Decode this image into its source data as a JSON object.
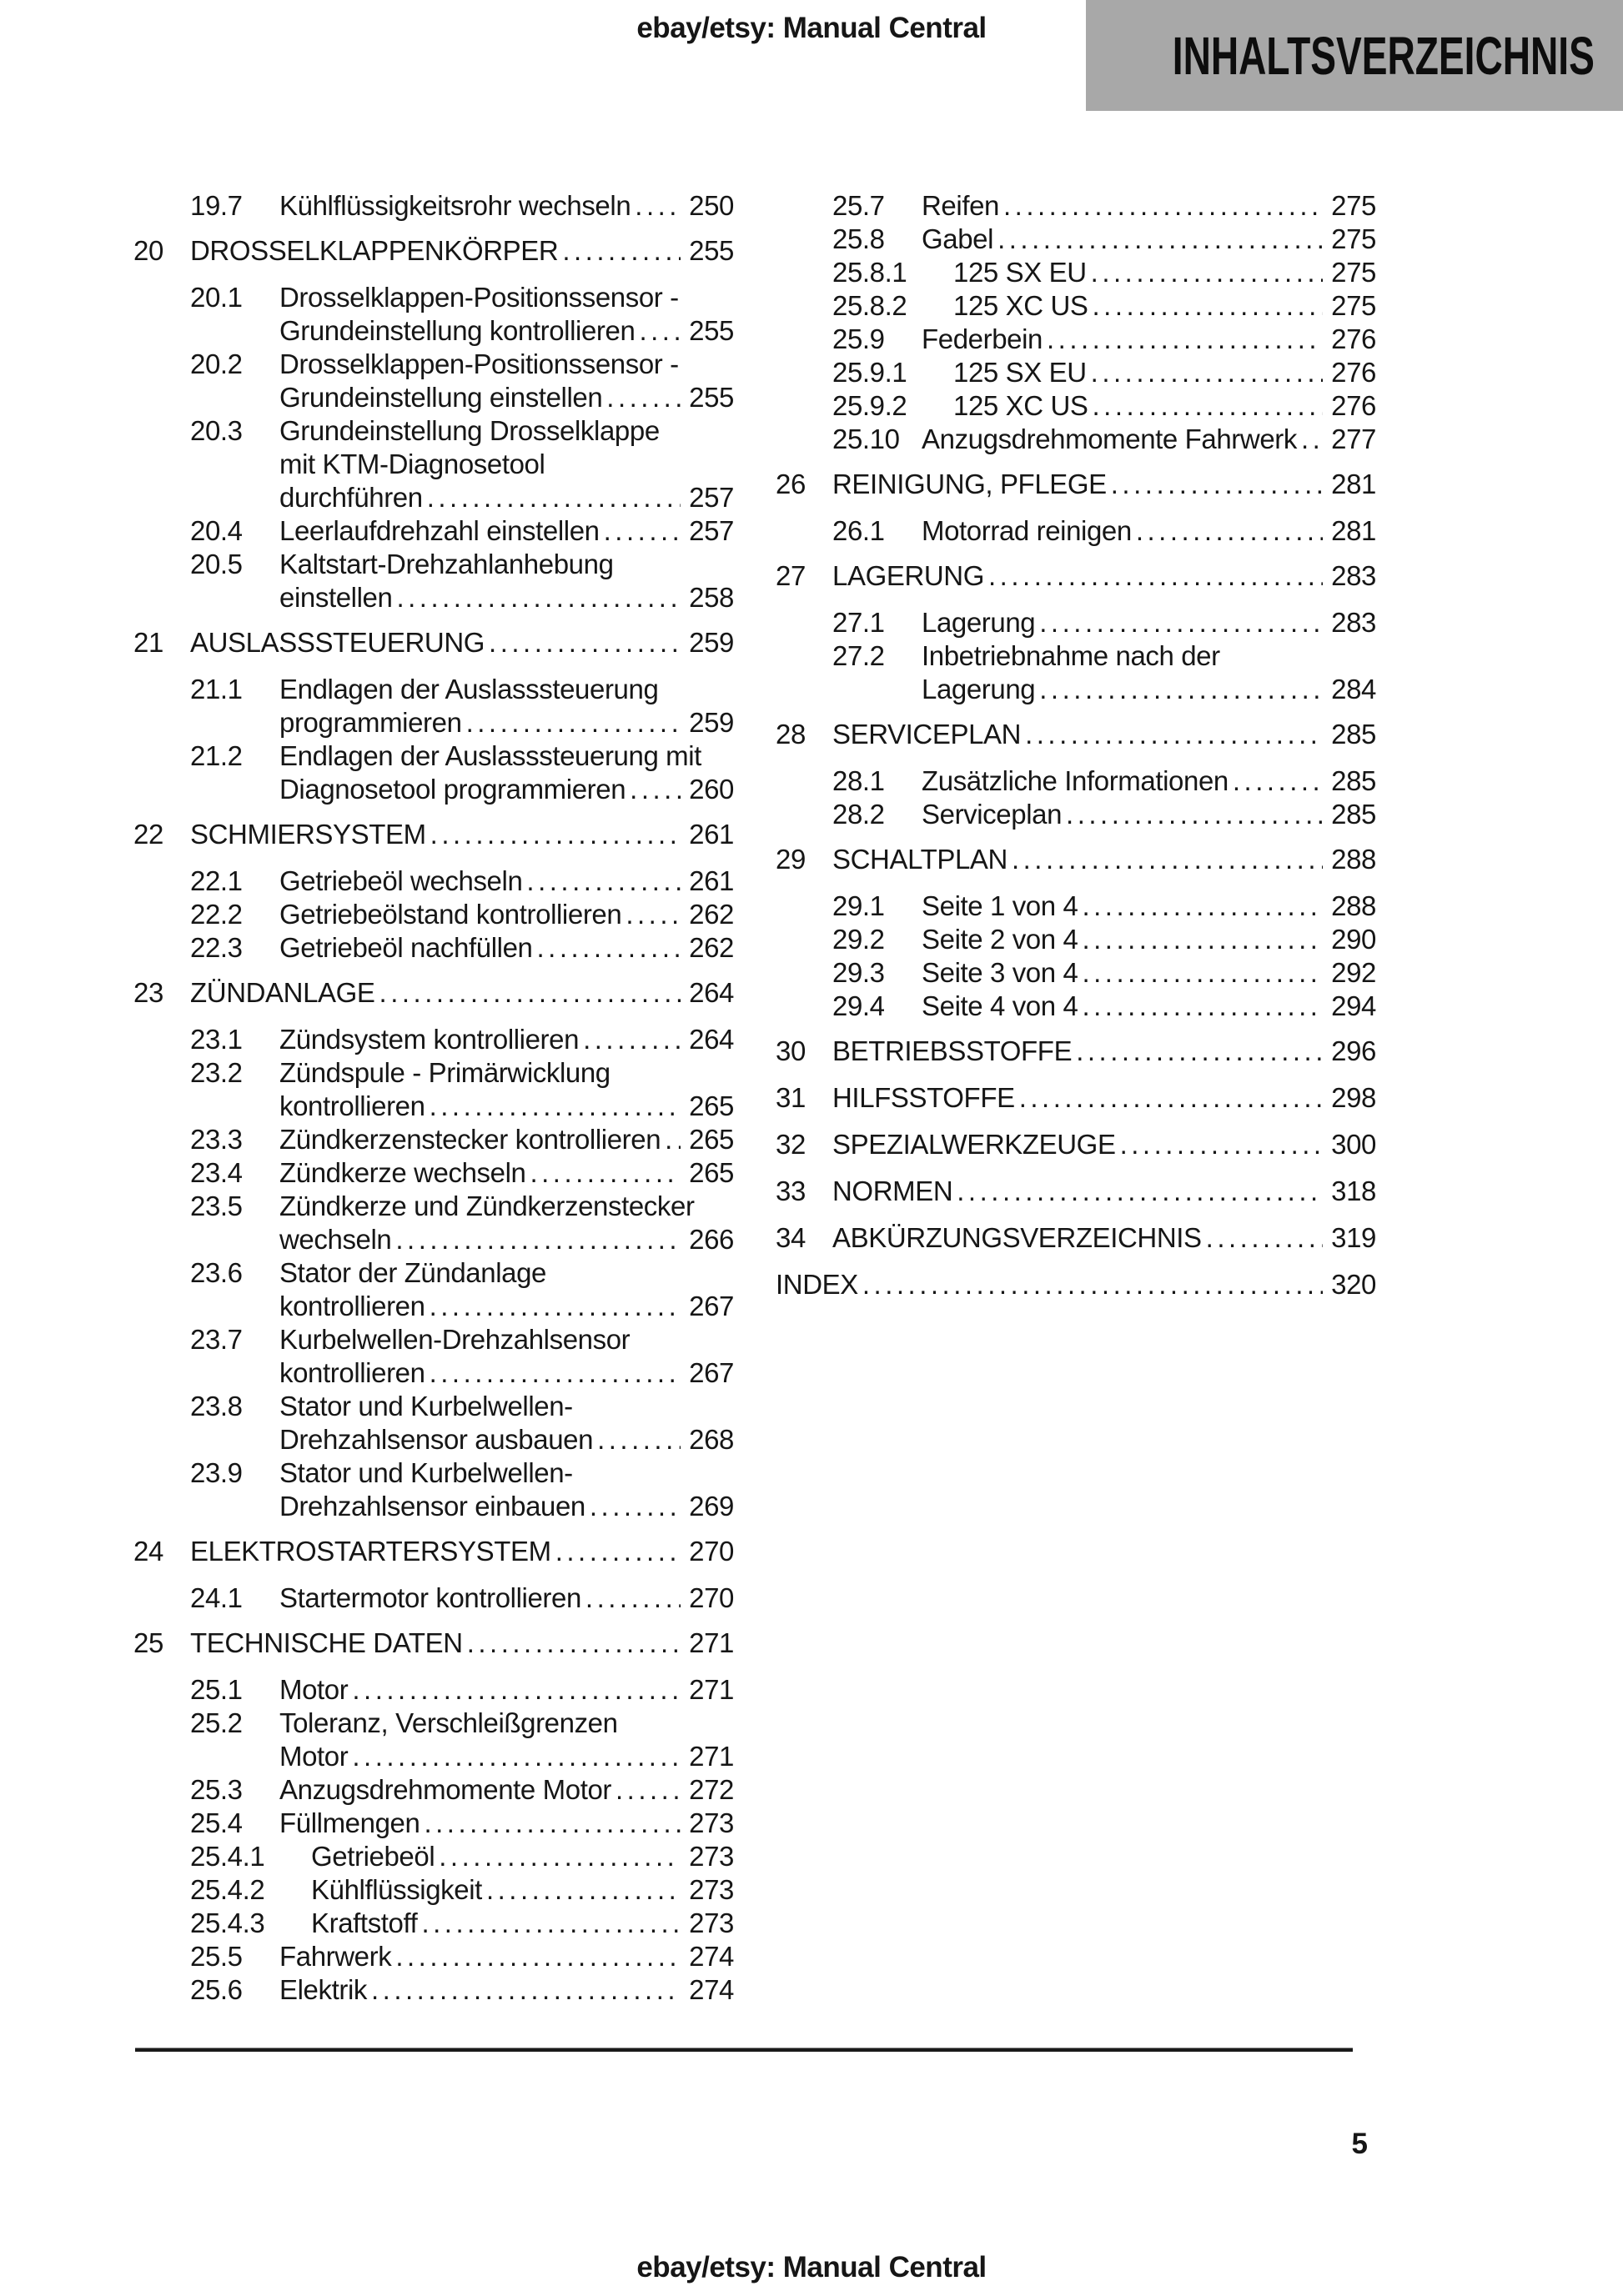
{
  "header": {
    "site_label": "ebay/etsy: Manual Central",
    "page_heading": "INHALTSVERZEICHNIS"
  },
  "footer": {
    "page_number": "5",
    "site_label": "ebay/etsy: Manual Central"
  },
  "colors": {
    "header_box_bg": "#a8a8a8",
    "text": "#161616"
  },
  "toc": {
    "left": [
      {
        "num": "19.7",
        "level": "section",
        "lines": [
          "Kühlflüssigkeitsrohr wechseln"
        ],
        "page": "250"
      },
      {
        "num": "20",
        "level": "chapter",
        "lines": [
          "DROSSELKLAPPENKÖRPER"
        ],
        "page": "255"
      },
      {
        "num": "20.1",
        "level": "section",
        "lines": [
          "Drosselklappen-Positionssensor -",
          "Grundeinstellung kontrollieren"
        ],
        "page": "255"
      },
      {
        "num": "20.2",
        "level": "section",
        "lines": [
          "Drosselklappen-Positionssensor -",
          "Grundeinstellung einstellen"
        ],
        "page": "255"
      },
      {
        "num": "20.3",
        "level": "section",
        "lines": [
          "Grundeinstellung Drosselklappe",
          "mit KTM-Diagnosetool",
          "durchführen"
        ],
        "page": "257"
      },
      {
        "num": "20.4",
        "level": "section",
        "lines": [
          "Leerlaufdrehzahl einstellen"
        ],
        "page": "257"
      },
      {
        "num": "20.5",
        "level": "section",
        "lines": [
          "Kaltstart-Drehzahlanhebung",
          "einstellen"
        ],
        "page": "258"
      },
      {
        "num": "21",
        "level": "chapter",
        "lines": [
          "AUSLASSSTEUERUNG"
        ],
        "page": "259"
      },
      {
        "num": "21.1",
        "level": "section",
        "lines": [
          "Endlagen der Auslasssteuerung",
          "programmieren"
        ],
        "page": "259"
      },
      {
        "num": "21.2",
        "level": "section",
        "lines": [
          "Endlagen der Auslasssteuerung mit",
          "Diagnosetool programmieren"
        ],
        "page": "260"
      },
      {
        "num": "22",
        "level": "chapter",
        "lines": [
          "SCHMIERSYSTEM"
        ],
        "page": "261"
      },
      {
        "num": "22.1",
        "level": "section",
        "lines": [
          "Getriebeöl wechseln"
        ],
        "page": "261"
      },
      {
        "num": "22.2",
        "level": "section",
        "lines": [
          "Getriebeölstand kontrollieren"
        ],
        "page": "262"
      },
      {
        "num": "22.3",
        "level": "section",
        "lines": [
          "Getriebeöl nachfüllen"
        ],
        "page": "262"
      },
      {
        "num": "23",
        "level": "chapter",
        "lines": [
          "ZÜNDANLAGE"
        ],
        "page": "264"
      },
      {
        "num": "23.1",
        "level": "section",
        "lines": [
          "Zündsystem kontrollieren"
        ],
        "page": "264"
      },
      {
        "num": "23.2",
        "level": "section",
        "lines": [
          "Zündspule - Primärwicklung",
          "kontrollieren"
        ],
        "page": "265"
      },
      {
        "num": "23.3",
        "level": "section",
        "lines": [
          "Zündkerzenstecker kontrollieren"
        ],
        "page": "265"
      },
      {
        "num": "23.4",
        "level": "section",
        "lines": [
          "Zündkerze wechseln"
        ],
        "page": "265"
      },
      {
        "num": "23.5",
        "level": "section",
        "lines": [
          "Zündkerze und Zündkerzenstecker",
          "wechseln"
        ],
        "page": "266"
      },
      {
        "num": "23.6",
        "level": "section",
        "lines": [
          "Stator der Zündanlage",
          "kontrollieren"
        ],
        "page": "267"
      },
      {
        "num": "23.7",
        "level": "section",
        "lines": [
          "Kurbelwellen-Drehzahlsensor",
          "kontrollieren"
        ],
        "page": "267"
      },
      {
        "num": "23.8",
        "level": "section",
        "lines": [
          "Stator und Kurbelwellen-",
          "Drehzahlsensor ausbauen"
        ],
        "page": "268"
      },
      {
        "num": "23.9",
        "level": "section",
        "lines": [
          "Stator und Kurbelwellen-",
          "Drehzahlsensor einbauen"
        ],
        "page": "269"
      },
      {
        "num": "24",
        "level": "chapter",
        "lines": [
          "ELEKTROSTARTERSYSTEM"
        ],
        "page": "270"
      },
      {
        "num": "24.1",
        "level": "section",
        "lines": [
          "Startermotor kontrollieren"
        ],
        "page": "270"
      },
      {
        "num": "25",
        "level": "chapter",
        "lines": [
          "TECHNISCHE DATEN"
        ],
        "page": "271"
      },
      {
        "num": "25.1",
        "level": "section",
        "lines": [
          "Motor"
        ],
        "page": "271"
      },
      {
        "num": "25.2",
        "level": "section",
        "lines": [
          "Toleranz, Verschleißgrenzen",
          "Motor"
        ],
        "page": "271"
      },
      {
        "num": "25.3",
        "level": "section",
        "lines": [
          "Anzugsdrehmomente Motor"
        ],
        "page": "272"
      },
      {
        "num": "25.4",
        "level": "section",
        "lines": [
          "Füllmengen"
        ],
        "page": "273"
      },
      {
        "num": "25.4.1",
        "level": "subsection",
        "lines": [
          "Getriebeöl"
        ],
        "page": "273"
      },
      {
        "num": "25.4.2",
        "level": "subsection",
        "lines": [
          "Kühlflüssigkeit"
        ],
        "page": "273"
      },
      {
        "num": "25.4.3",
        "level": "subsection",
        "lines": [
          "Kraftstoff"
        ],
        "page": "273"
      },
      {
        "num": "25.5",
        "level": "section",
        "lines": [
          "Fahrwerk"
        ],
        "page": "274"
      },
      {
        "num": "25.6",
        "level": "section",
        "lines": [
          "Elektrik"
        ],
        "page": "274"
      }
    ],
    "right": [
      {
        "num": "25.7",
        "level": "section",
        "lines": [
          "Reifen"
        ],
        "page": "275"
      },
      {
        "num": "25.8",
        "level": "section",
        "lines": [
          "Gabel"
        ],
        "page": "275"
      },
      {
        "num": "25.8.1",
        "level": "subsection",
        "lines": [
          "125 SX EU"
        ],
        "page": "275"
      },
      {
        "num": "25.8.2",
        "level": "subsection",
        "lines": [
          "125 XC US"
        ],
        "page": "275"
      },
      {
        "num": "25.9",
        "level": "section",
        "lines": [
          "Federbein"
        ],
        "page": "276"
      },
      {
        "num": "25.9.1",
        "level": "subsection",
        "lines": [
          "125 SX EU"
        ],
        "page": "276"
      },
      {
        "num": "25.9.2",
        "level": "subsection",
        "lines": [
          "125 XC US"
        ],
        "page": "276"
      },
      {
        "num": "25.10",
        "level": "section",
        "lines": [
          "Anzugsdrehmomente Fahrwerk"
        ],
        "page": "277"
      },
      {
        "num": "26",
        "level": "chapter",
        "lines": [
          "REINIGUNG, PFLEGE"
        ],
        "page": "281"
      },
      {
        "num": "26.1",
        "level": "section",
        "lines": [
          "Motorrad reinigen"
        ],
        "page": "281"
      },
      {
        "num": "27",
        "level": "chapter",
        "lines": [
          "LAGERUNG"
        ],
        "page": "283"
      },
      {
        "num": "27.1",
        "level": "section",
        "lines": [
          "Lagerung"
        ],
        "page": "283"
      },
      {
        "num": "27.2",
        "level": "section",
        "lines": [
          "Inbetriebnahme nach der",
          "Lagerung"
        ],
        "page": "284"
      },
      {
        "num": "28",
        "level": "chapter",
        "lines": [
          "SERVICEPLAN"
        ],
        "page": "285"
      },
      {
        "num": "28.1",
        "level": "section",
        "lines": [
          "Zusätzliche Informationen"
        ],
        "page": "285"
      },
      {
        "num": "28.2",
        "level": "section",
        "lines": [
          "Serviceplan"
        ],
        "page": "285"
      },
      {
        "num": "29",
        "level": "chapter",
        "lines": [
          "SCHALTPLAN"
        ],
        "page": "288"
      },
      {
        "num": "29.1",
        "level": "section",
        "lines": [
          "Seite 1 von 4"
        ],
        "page": "288"
      },
      {
        "num": "29.2",
        "level": "section",
        "lines": [
          "Seite 2 von 4"
        ],
        "page": "290"
      },
      {
        "num": "29.3",
        "level": "section",
        "lines": [
          "Seite 3 von 4"
        ],
        "page": "292"
      },
      {
        "num": "29.4",
        "level": "section",
        "lines": [
          "Seite 4 von 4"
        ],
        "page": "294"
      },
      {
        "num": "30",
        "level": "chapter",
        "lines": [
          "BETRIEBSSTOFFE"
        ],
        "page": "296"
      },
      {
        "num": "31",
        "level": "chapter",
        "lines": [
          "HILFSSTOFFE"
        ],
        "page": "298"
      },
      {
        "num": "32",
        "level": "chapter",
        "lines": [
          "SPEZIALWERKZEUGE"
        ],
        "page": "300"
      },
      {
        "num": "33",
        "level": "chapter",
        "lines": [
          "NORMEN"
        ],
        "page": "318"
      },
      {
        "num": "34",
        "level": "chapter",
        "lines": [
          "ABKÜRZUNGSVERZEICHNIS"
        ],
        "page": "319"
      },
      {
        "num": "",
        "level": "index",
        "lines": [
          "INDEX"
        ],
        "page": "320"
      }
    ]
  }
}
